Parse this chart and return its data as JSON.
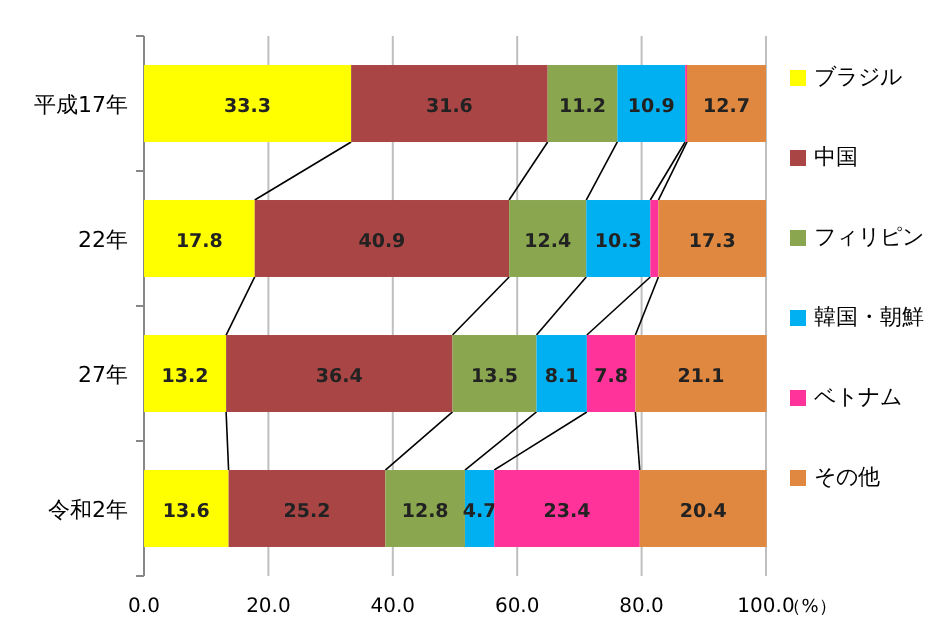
{
  "chart_data": {
    "type": "bar",
    "orientation": "horizontal",
    "stacked": true,
    "categories": [
      "平成17年",
      "22年",
      "27年",
      "令和2年"
    ],
    "series": [
      {
        "name": "ブラジル",
        "color": "#ffff00",
        "values": [
          33.3,
          17.8,
          13.2,
          13.6
        ],
        "value_labels": [
          "33.3",
          "17.8",
          "13.2",
          "13.6"
        ]
      },
      {
        "name": "中国",
        "color": "#a94545",
        "values": [
          31.6,
          40.9,
          36.4,
          25.2
        ],
        "value_labels": [
          "31.6",
          "40.9",
          "36.4",
          "25.2"
        ]
      },
      {
        "name": "フィリピン",
        "color": "#8aa74f",
        "values": [
          11.2,
          12.4,
          13.5,
          12.8
        ],
        "value_labels": [
          "11.2",
          "12.4",
          "13.5",
          "12.8"
        ]
      },
      {
        "name": "韓国・朝鮮",
        "color": "#00b0f0",
        "values": [
          10.9,
          10.3,
          8.1,
          4.7
        ],
        "value_labels": [
          "10.9",
          "10.3",
          "8.1",
          "4.7"
        ]
      },
      {
        "name": "ベトナム",
        "color": "#ff3399",
        "values": [
          0.3,
          1.3,
          7.8,
          23.4
        ],
        "value_labels": [
          null,
          null,
          "7.8",
          "23.4"
        ]
      },
      {
        "name": "その他",
        "color": "#e0883f",
        "values": [
          12.7,
          17.3,
          21.1,
          20.4
        ],
        "value_labels": [
          "12.7",
          "17.3",
          "21.1",
          "20.4"
        ]
      }
    ],
    "xlim": [
      0,
      100
    ],
    "xticks": [
      {
        "value": 0,
        "label": "0.0"
      },
      {
        "value": 20,
        "label": "20.0"
      },
      {
        "value": 40,
        "label": "40.0"
      },
      {
        "value": 60,
        "label": "60.0"
      },
      {
        "value": 80,
        "label": "80.0"
      },
      {
        "value": 100,
        "label": "100.0"
      }
    ],
    "xlabel": "（%）",
    "grid": "x",
    "legend": "right"
  }
}
